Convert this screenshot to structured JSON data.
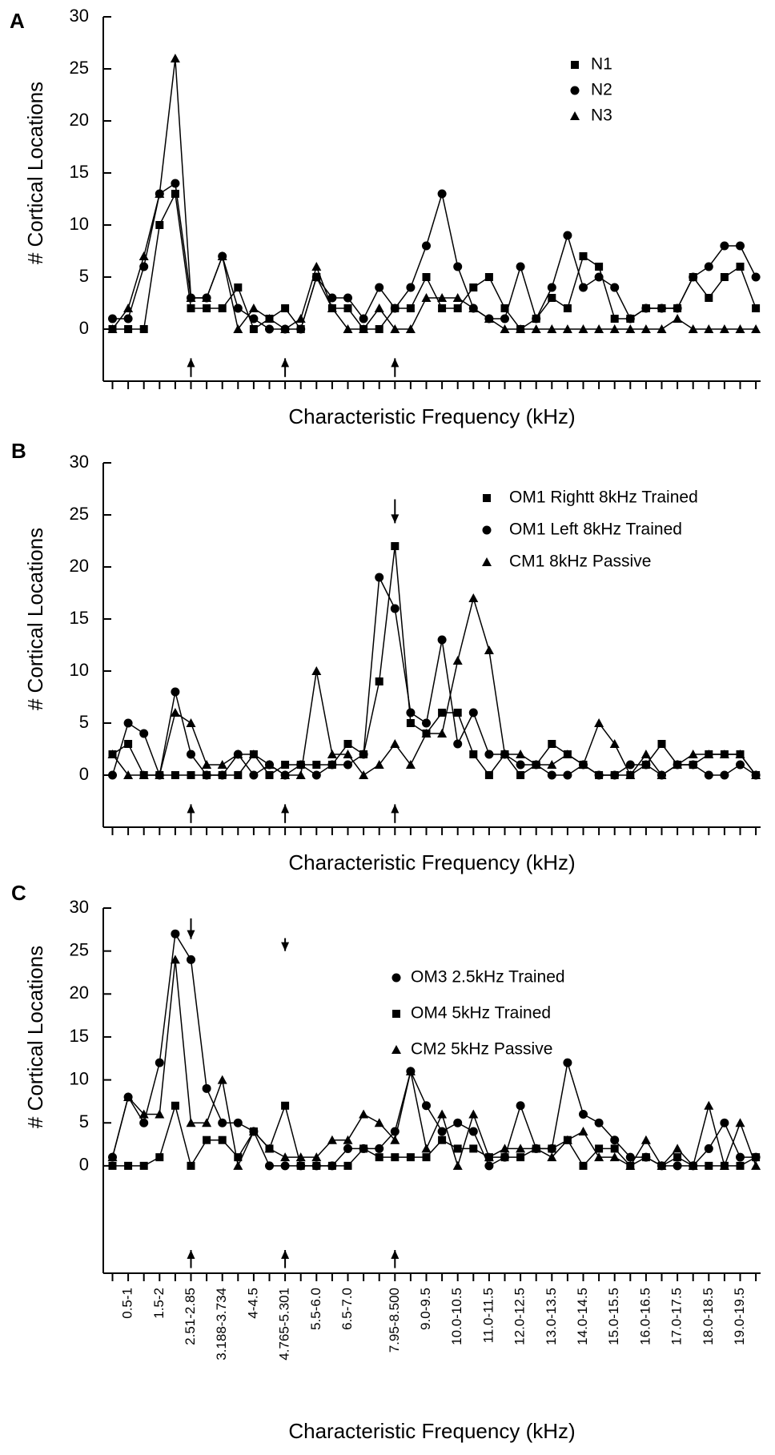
{
  "chart_data": [
    {
      "type": "line",
      "label": "A",
      "x_label": "Characteristic Frequency (kHz)",
      "y_label": "# Cortical Locations",
      "ylim": [
        -5,
        30
      ],
      "yticks": [
        0,
        5,
        10,
        15,
        20,
        25,
        30
      ],
      "legend": "upper right",
      "series": [
        {
          "name": "N1",
          "color": "#000000",
          "marker": "square",
          "values": [
            0,
            0,
            0,
            10,
            13,
            2,
            2,
            2,
            4,
            0,
            1,
            2,
            0,
            5,
            2,
            2,
            0,
            0,
            2,
            2,
            5,
            2,
            2,
            4,
            5,
            2,
            0,
            1,
            3,
            2,
            7,
            6,
            1,
            1,
            2,
            2,
            2,
            5,
            3,
            5,
            6,
            2
          ]
        },
        {
          "name": "N2",
          "color": "#000000",
          "marker": "circle",
          "values": [
            1,
            1,
            6,
            13,
            14,
            3,
            3,
            7,
            2,
            1,
            0,
            0,
            0,
            5,
            3,
            3,
            1,
            4,
            2,
            4,
            8,
            13,
            6,
            2,
            1,
            1,
            6,
            1,
            4,
            9,
            4,
            5,
            4,
            1,
            2,
            2,
            2,
            5,
            6,
            8,
            8,
            5
          ]
        },
        {
          "name": "N3",
          "color": "#000000",
          "marker": "triangle",
          "values": [
            0,
            2,
            7,
            13,
            26,
            3,
            3,
            7,
            0,
            2,
            1,
            0,
            1,
            6,
            2,
            0,
            0,
            2,
            0,
            0,
            3,
            3,
            3,
            2,
            1,
            0,
            0,
            0,
            0,
            0,
            0,
            0,
            0,
            0,
            0,
            0,
            1,
            0,
            0,
            0,
            0,
            0
          ]
        }
      ]
    },
    {
      "type": "line",
      "label": "B",
      "x_label": "Characteristic Frequency (kHz)",
      "y_label": "# Cortical Locations",
      "ylim": [
        -5,
        30
      ],
      "yticks": [
        0,
        5,
        10,
        15,
        20,
        25,
        30
      ],
      "legend": "upper right",
      "series": [
        {
          "name": "OM1  Rightt 8kHz Trained",
          "color": "#000000",
          "marker": "square",
          "values": [
            2,
            3,
            0,
            0,
            0,
            0,
            0,
            0,
            0,
            2,
            0,
            1,
            1,
            1,
            1,
            3,
            2,
            9,
            22,
            5,
            4,
            6,
            6,
            2,
            0,
            2,
            0,
            1,
            3,
            2,
            1,
            0,
            0,
            0,
            1,
            3,
            1,
            1,
            2,
            2,
            2,
            0
          ]
        },
        {
          "name": "OM1 Left 8kHz Trained",
          "color": "#000000",
          "marker": "circle",
          "values": [
            0,
            5,
            4,
            0,
            8,
            2,
            0,
            0,
            2,
            0,
            1,
            0,
            1,
            0,
            1,
            1,
            2,
            19,
            16,
            6,
            5,
            13,
            3,
            6,
            2,
            2,
            1,
            1,
            0,
            0,
            1,
            0,
            0,
            1,
            1,
            0,
            1,
            1,
            0,
            0,
            1,
            0
          ]
        },
        {
          "name": "CM1 8kHz Passive",
          "color": "#000000",
          "marker": "triangle",
          "values": [
            2,
            0,
            0,
            0,
            6,
            5,
            1,
            1,
            2,
            2,
            1,
            0,
            0,
            10,
            2,
            2,
            0,
            1,
            3,
            1,
            4,
            4,
            11,
            17,
            12,
            2,
            2,
            1,
            1,
            2,
            1,
            5,
            3,
            0,
            2,
            0,
            1,
            2,
            2,
            2,
            2,
            0
          ]
        }
      ]
    },
    {
      "type": "line",
      "label": "C",
      "x_label": "Characteristic Frequency (kHz)",
      "y_label": "# Cortical Locations",
      "ylim": [
        -12.5,
        30
      ],
      "yticks": [
        0,
        5,
        10,
        15,
        20,
        25,
        30
      ],
      "legend": "upper right",
      "categories": [
        null,
        "0.5-1",
        null,
        "1.5-2",
        null,
        "2.51-2.85",
        null,
        "3.188-3.734",
        null,
        "4-4.5",
        null,
        "4.765-5.301",
        null,
        "5.5-6.0",
        null,
        "6.5-7.0",
        null,
        null,
        "7.95-8.500",
        null,
        "9.0-9.5",
        null,
        "10.0-10.5",
        null,
        "11.0-11.5",
        null,
        "12.0-12.5",
        null,
        "13.0-13.5",
        null,
        "14.0-14.5",
        null,
        "15.0-15.5",
        null,
        "16.0-16.5",
        null,
        "17.0-17.5",
        null,
        "18.0-18.5",
        null,
        "19.0-19.5",
        null
      ],
      "series": [
        {
          "name": "OM3  2.5kHz Trained",
          "color": "#000000",
          "marker": "circle",
          "values": [
            1,
            8,
            5,
            12,
            27,
            24,
            9,
            5,
            5,
            4,
            0,
            0,
            0,
            0,
            0,
            2,
            2,
            2,
            4,
            11,
            7,
            4,
            5,
            4,
            0,
            1,
            7,
            2,
            2,
            12,
            6,
            5,
            3,
            1,
            1,
            0,
            0,
            0,
            2,
            5,
            1,
            1
          ]
        },
        {
          "name": "OM4 5kHz Trained",
          "color": "#000000",
          "marker": "square",
          "values": [
            0,
            0,
            0,
            1,
            7,
            0,
            3,
            3,
            1,
            4,
            2,
            7,
            0,
            0,
            0,
            0,
            2,
            1,
            1,
            1,
            1,
            3,
            2,
            2,
            1,
            1,
            1,
            2,
            2,
            3,
            0,
            2,
            2,
            0,
            1,
            0,
            1,
            0,
            0,
            0,
            0,
            1
          ]
        },
        {
          "name": "CM2 5kHz Passive",
          "color": "#000000",
          "marker": "triangle",
          "values": [
            1,
            8,
            6,
            6,
            24,
            5,
            5,
            10,
            0,
            4,
            2,
            1,
            1,
            1,
            3,
            3,
            6,
            5,
            3,
            11,
            2,
            6,
            0,
            6,
            1,
            2,
            2,
            2,
            1,
            3,
            4,
            1,
            1,
            0,
            3,
            0,
            2,
            0,
            7,
            0,
            5,
            0
          ]
        }
      ]
    }
  ]
}
